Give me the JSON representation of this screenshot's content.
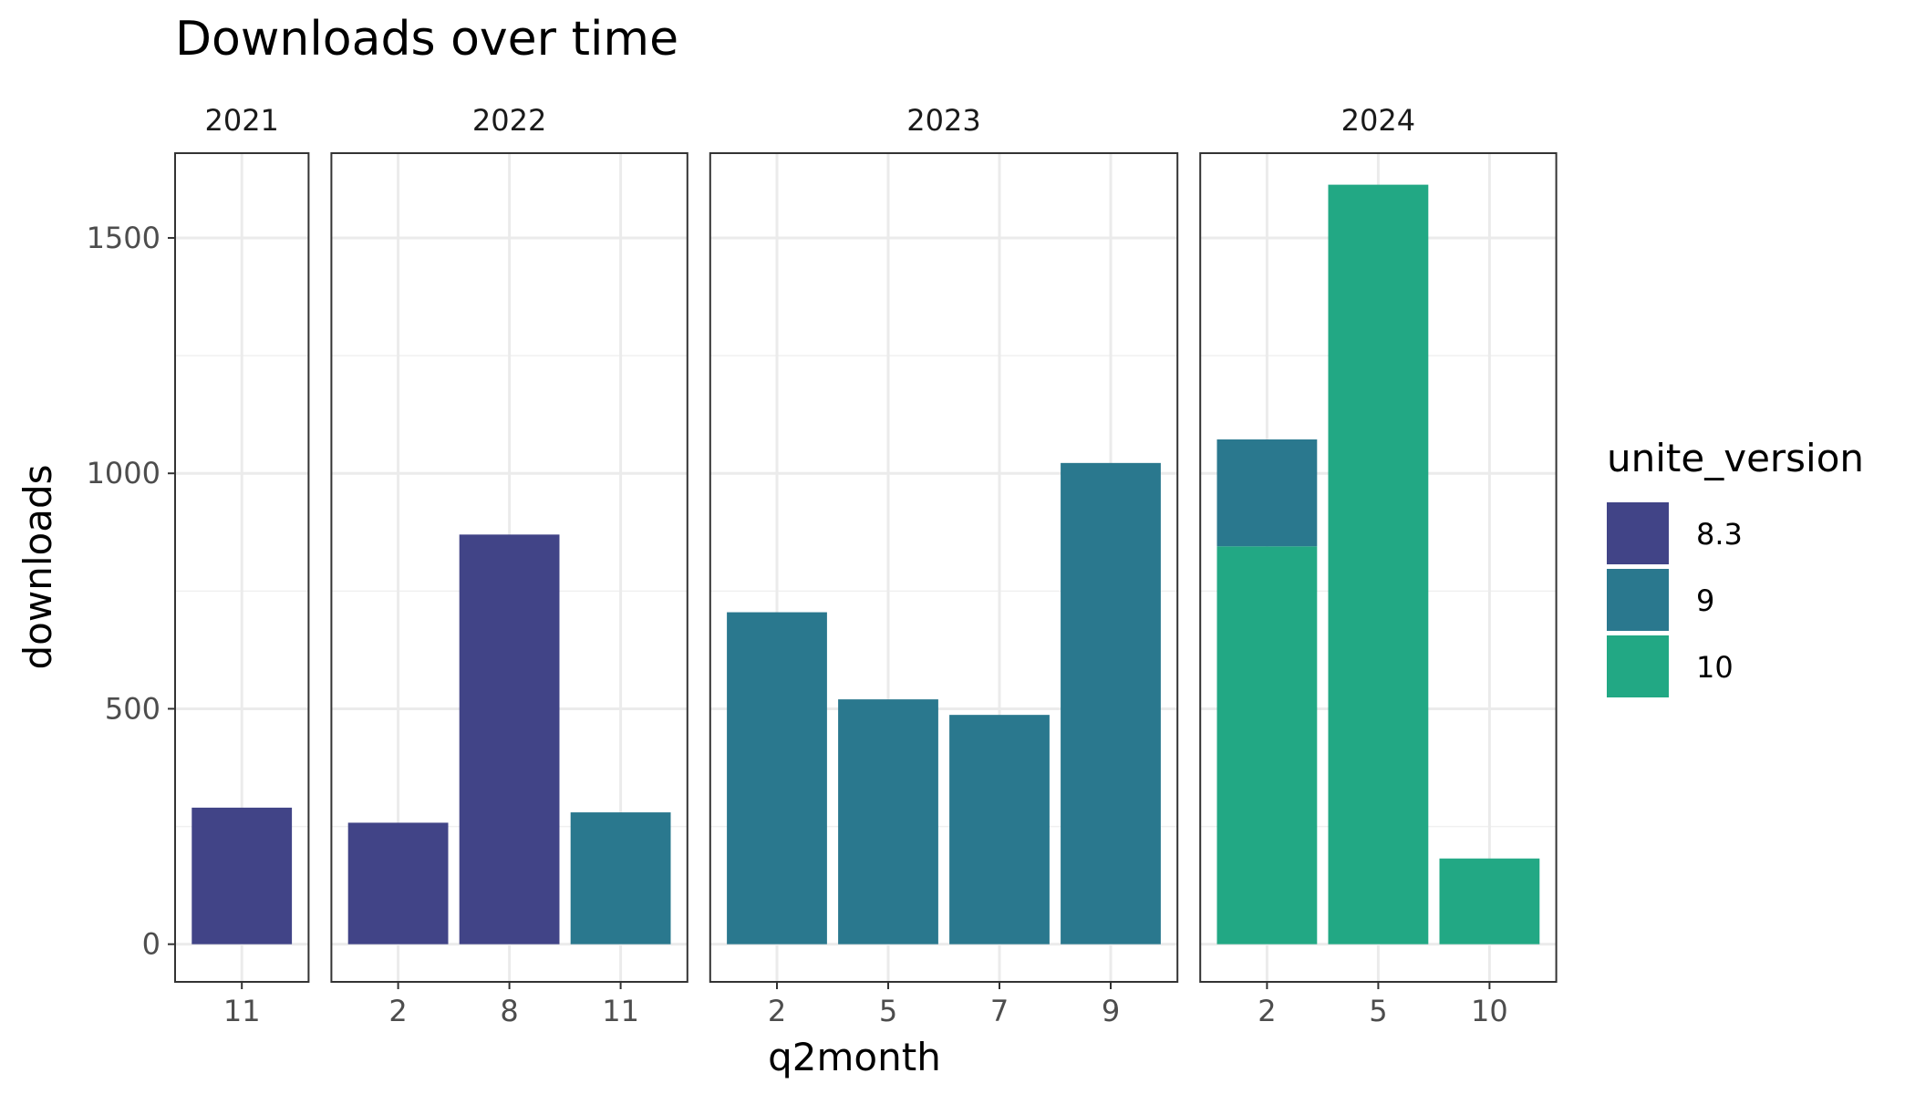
{
  "chart_data": {
    "type": "bar",
    "title": "Downloads over time",
    "xlabel": "q2month",
    "ylabel": "downloads",
    "ylim": [
      -80,
      1680
    ],
    "yticks": [
      0,
      500,
      1000,
      1500
    ],
    "stacked": true,
    "facet_by": "year",
    "legend": {
      "title": "unite_version",
      "position": "right",
      "entries": [
        {
          "label": "8.3",
          "color": "#414487"
        },
        {
          "label": "9",
          "color": "#2A788E"
        },
        {
          "label": "10",
          "color": "#22A884"
        }
      ]
    },
    "panels": [
      {
        "facet": "2021",
        "categories": [
          "11"
        ],
        "bars": [
          [
            {
              "series": "8.3",
              "value": 290
            }
          ]
        ]
      },
      {
        "facet": "2022",
        "categories": [
          "2",
          "8",
          "11"
        ],
        "bars": [
          [
            {
              "series": "8.3",
              "value": 258
            }
          ],
          [
            {
              "series": "8.3",
              "value": 870
            }
          ],
          [
            {
              "series": "9",
              "value": 280
            }
          ]
        ]
      },
      {
        "facet": "2023",
        "categories": [
          "2",
          "5",
          "7",
          "9"
        ],
        "bars": [
          [
            {
              "series": "9",
              "value": 705
            }
          ],
          [
            {
              "series": "9",
              "value": 520
            }
          ],
          [
            {
              "series": "9",
              "value": 487
            }
          ],
          [
            {
              "series": "9",
              "value": 1022
            }
          ]
        ]
      },
      {
        "facet": "2024",
        "categories": [
          "2",
          "5",
          "10"
        ],
        "bars": [
          [
            {
              "series": "10",
              "value": 845
            },
            {
              "series": "9",
              "value": 227
            }
          ],
          [
            {
              "series": "10",
              "value": 1613
            }
          ],
          [
            {
              "series": "10",
              "value": 182
            }
          ]
        ]
      }
    ],
    "grid": true,
    "panel_border": true
  }
}
